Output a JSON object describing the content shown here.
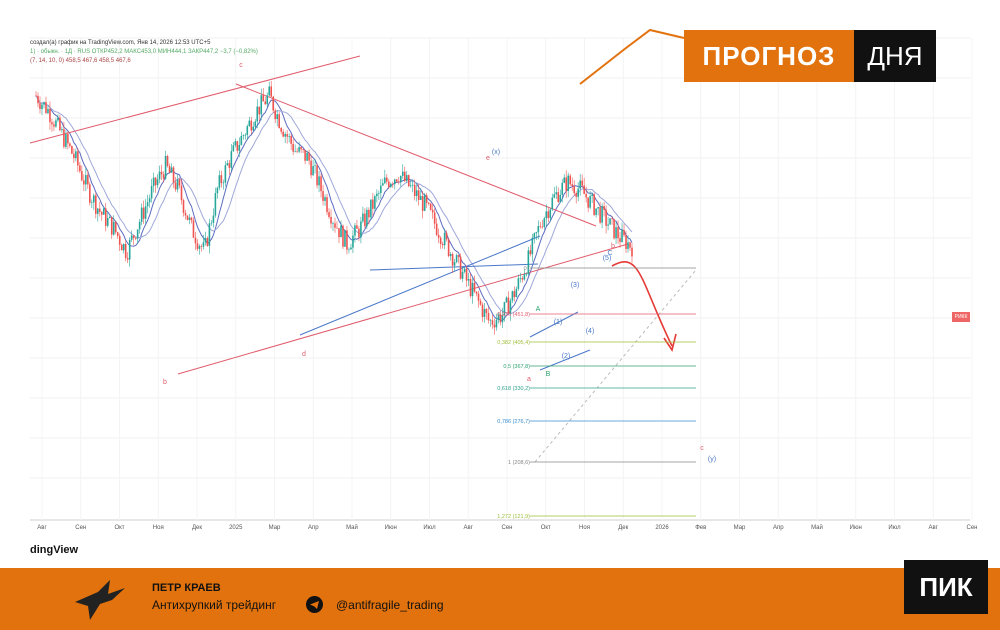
{
  "header": {
    "line1": "создал(а) график на TradingView.com, Янв 14, 2026 12:53 UTC+5",
    "line2": "1) · обыкн. · 1Д · RUS  ОТКР452,2  МАКС453,0  МИН444,1  ЗАКР447,2  −3,7 (−0,82%)",
    "line3": "(7, 14, 10, 0)  458,5  467,6  458,5  467,6"
  },
  "watermark": "dingView",
  "badge": {
    "left": "ПРОГНОЗ",
    "right": "ДНЯ"
  },
  "footer": {
    "author": "ПЕТР КРАЕВ",
    "tagline": "Антихрупкий трейдинг",
    "handle": "@antifragile_trading",
    "logo": "ПИК"
  },
  "price_tag": "РИКК",
  "colors": {
    "accent": "#e2720d",
    "bull": "#26a69a",
    "bear": "#ef5350",
    "ma": "#3f51b5",
    "channel": "#e05c6c",
    "trend": "#4a78c8"
  },
  "chart_data": {
    "type": "line",
    "x_ticks": [
      "Авг",
      "Сен",
      "Окт",
      "Ноя",
      "Дек",
      "2025",
      "Мар",
      "Апр",
      "Май",
      "Июн",
      "Июл",
      "Авг",
      "Сен",
      "Окт",
      "Ноя",
      "Дек",
      "2026",
      "Фев",
      "Мар",
      "Апр",
      "Май",
      "Июн",
      "Июл",
      "Авг",
      "Сен"
    ],
    "price_path": [
      640,
      620,
      590,
      560,
      520,
      490,
      470,
      440,
      480,
      520,
      550,
      520,
      470,
      440,
      520,
      560,
      590,
      620,
      640,
      600,
      570,
      560,
      520,
      480,
      450,
      470,
      500,
      530,
      540,
      520,
      500,
      470,
      440,
      410,
      380,
      350,
      360,
      390,
      430,
      480,
      510,
      530,
      520,
      500,
      480,
      460,
      447
    ],
    "fib_levels": [
      {
        "label": "0 (",
        "color": "#888"
      },
      {
        "label": "0,236 (451,8)",
        "color": "#e05c6c"
      },
      {
        "label": "0,382 (405,4)",
        "color": "#9dbf3a"
      },
      {
        "label": "0,5 (367,8)",
        "color": "#2ea36f"
      },
      {
        "label": "0,618 (330,2)",
        "color": "#2ea38e"
      },
      {
        "label": "0,786 (276,7)",
        "color": "#3a8fd0"
      },
      {
        "label": "1 (208,6)",
        "color": "#888"
      },
      {
        "label": "1,272 (121,9)",
        "color": "#9dbf3a"
      }
    ],
    "wave_labels": [
      "b",
      "c",
      "d",
      "e",
      "(x)",
      "a",
      "b",
      "c",
      "(y)",
      "(1)",
      "(2)",
      "(3)",
      "(4)",
      "(5)",
      "A",
      "B",
      "C"
    ]
  }
}
